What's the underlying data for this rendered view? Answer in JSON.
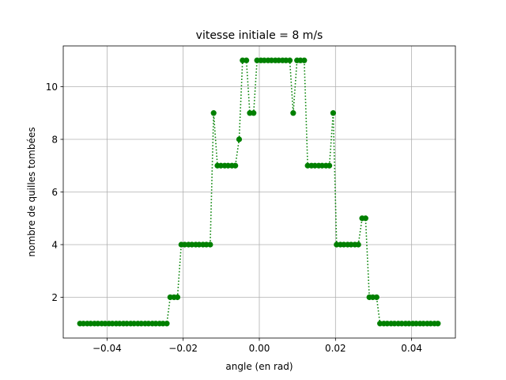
{
  "chart_data": {
    "type": "line",
    "title": "vitesse initiale = 8 m/s",
    "xlabel": "angle (en rad)",
    "ylabel": "nombre de quilles tombées",
    "xlim": [
      -0.0515,
      0.0515
    ],
    "ylim": [
      0.45,
      11.55
    ],
    "xticks": [
      -0.04,
      -0.02,
      0.0,
      0.02,
      0.04
    ],
    "xtick_labels": [
      "−0.04",
      "−0.02",
      "0.00",
      "0.02",
      "0.04"
    ],
    "yticks": [
      2,
      4,
      6,
      8,
      10
    ],
    "ytick_labels": [
      "2",
      "4",
      "6",
      "8",
      "10"
    ],
    "grid": true,
    "line_style": "dotted",
    "marker": "circle",
    "color": "#008000",
    "x": [
      -0.0471,
      -0.0462,
      -0.0452,
      -0.0443,
      -0.0433,
      -0.0424,
      -0.0414,
      -0.0405,
      -0.0395,
      -0.0386,
      -0.0376,
      -0.0367,
      -0.0357,
      -0.0348,
      -0.0338,
      -0.0329,
      -0.0319,
      -0.031,
      -0.03,
      -0.0291,
      -0.0281,
      -0.0272,
      -0.0262,
      -0.0253,
      -0.0243,
      -0.0234,
      -0.0224,
      -0.0215,
      -0.0205,
      -0.0196,
      -0.0186,
      -0.0177,
      -0.0167,
      -0.0158,
      -0.0148,
      -0.0139,
      -0.0129,
      -0.012,
      -0.011,
      -0.0101,
      -0.0091,
      -0.0082,
      -0.0072,
      -0.0063,
      -0.0053,
      -0.0044,
      -0.0034,
      -0.0025,
      -0.0015,
      -0.0006,
      0.0004,
      0.0013,
      0.0023,
      0.0032,
      0.0042,
      0.0051,
      0.0061,
      0.007,
      0.008,
      0.0089,
      0.0099,
      0.0108,
      0.0118,
      0.0127,
      0.0137,
      0.0146,
      0.0156,
      0.0165,
      0.0175,
      0.0184,
      0.0194,
      0.0203,
      0.0213,
      0.0222,
      0.0232,
      0.0241,
      0.0251,
      0.026,
      0.027,
      0.0279,
      0.0289,
      0.0298,
      0.0308,
      0.0317,
      0.0327,
      0.0336,
      0.0346,
      0.0355,
      0.0365,
      0.0374,
      0.0384,
      0.0393,
      0.0403,
      0.0412,
      0.0422,
      0.0431,
      0.0441,
      0.045,
      0.046,
      0.0469
    ],
    "y": [
      1,
      1,
      1,
      1,
      1,
      1,
      1,
      1,
      1,
      1,
      1,
      1,
      1,
      1,
      1,
      1,
      1,
      1,
      1,
      1,
      1,
      1,
      1,
      1,
      1,
      2,
      2,
      2,
      4,
      4,
      4,
      4,
      4,
      4,
      4,
      4,
      4,
      9,
      7,
      7,
      7,
      7,
      7,
      7,
      8,
      11,
      11,
      9,
      9,
      11,
      11,
      11,
      11,
      11,
      11,
      11,
      11,
      11,
      11,
      9,
      11,
      11,
      11,
      7,
      7,
      7,
      7,
      7,
      7,
      7,
      9,
      4,
      4,
      4,
      4,
      4,
      4,
      4,
      5,
      5,
      2,
      2,
      2,
      1,
      1,
      1,
      1,
      1,
      1,
      1,
      1,
      1,
      1,
      1,
      1,
      1,
      1,
      1,
      1,
      1
    ]
  }
}
